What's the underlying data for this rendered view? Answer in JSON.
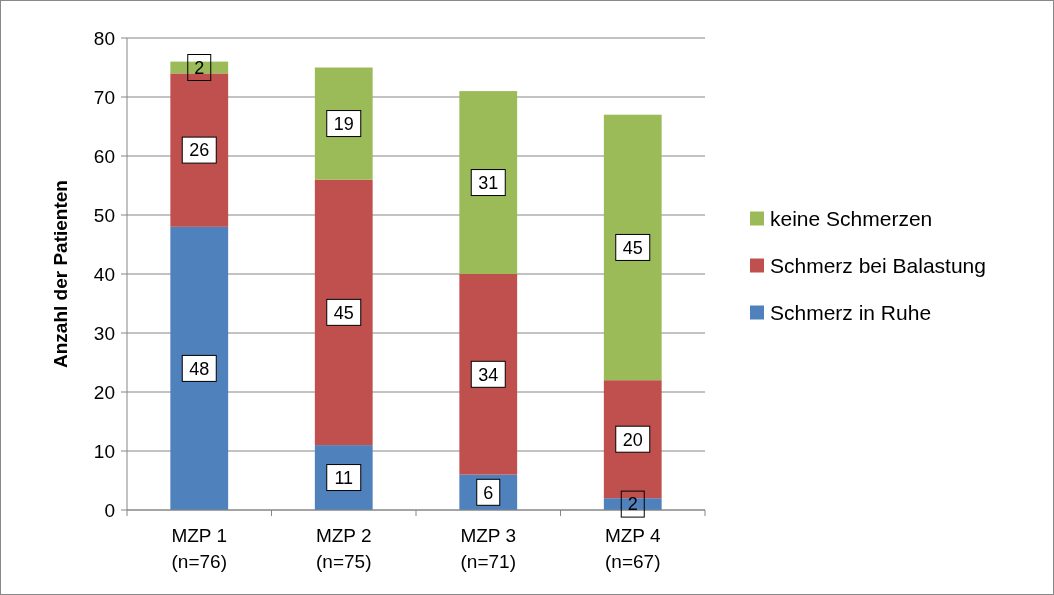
{
  "chart_data": {
    "type": "bar",
    "stacked": true,
    "ylabel": "Anzahl der Patienten",
    "categories": [
      "MZP 1\n(n=76)",
      "MZP 2\n(n=75)",
      "MZP 3\n(n=71)",
      "MZP 4\n(n=67)"
    ],
    "series": [
      {
        "name": "Schmerz in Ruhe",
        "color": "#4f81bd",
        "values": [
          48,
          11,
          6,
          2
        ]
      },
      {
        "name": "Schmerz bei Balastung",
        "color": "#c0504d",
        "values": [
          26,
          45,
          34,
          20
        ]
      },
      {
        "name": "keine Schmerzen",
        "color": "#9bbb59",
        "values": [
          2,
          19,
          31,
          45
        ]
      }
    ],
    "ylim": [
      0,
      80
    ],
    "yticks": [
      0,
      10,
      20,
      30,
      40,
      50,
      60,
      70,
      80
    ],
    "grid": "y",
    "legend": "right",
    "data_labels": true
  }
}
